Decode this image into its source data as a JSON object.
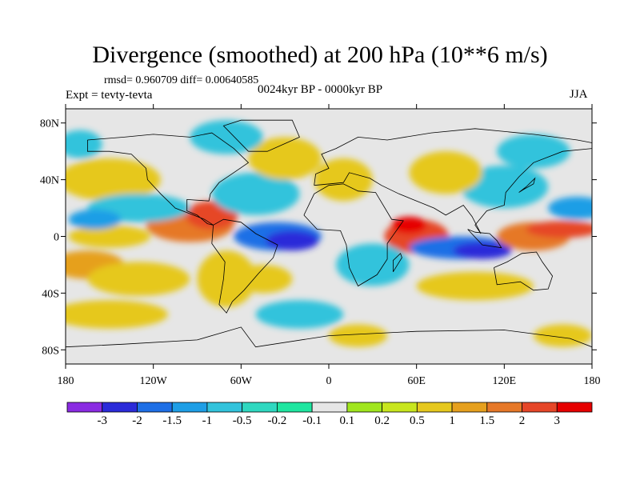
{
  "title": "Divergence (smoothed) at 200 hPa (10**6 m/s)",
  "stats": "rmsd= 0.960709 diff= 0.00640585",
  "experiment": "Expt = tevty-tevta",
  "subtitle": "0024kyr BP - 0000kyr BP",
  "season": "JJA",
  "map": {
    "projection": "cylindrical-equidistant",
    "lon_range": [
      -180,
      180
    ],
    "lat_range": [
      -90,
      90
    ],
    "x_ticks": [
      {
        "value": -180,
        "label": "180"
      },
      {
        "value": -120,
        "label": "120W"
      },
      {
        "value": -60,
        "label": "60W"
      },
      {
        "value": 0,
        "label": "0"
      },
      {
        "value": 60,
        "label": "60E"
      },
      {
        "value": 120,
        "label": "120E"
      },
      {
        "value": 180,
        "label": "180"
      }
    ],
    "y_ticks": [
      {
        "value": 80,
        "label": "80N"
      },
      {
        "value": 40,
        "label": "40N"
      },
      {
        "value": 0,
        "label": "0"
      },
      {
        "value": -40,
        "label": "40S"
      },
      {
        "value": -80,
        "label": "80S"
      }
    ],
    "background_color": "#e6e6e6",
    "coastline_color": "#000000"
  },
  "colorbar": {
    "colors": [
      "#8a2be2",
      "#2b2bd9",
      "#1e6fe6",
      "#1e9ee6",
      "#32c3dc",
      "#2fd8c0",
      "#1fe6a0",
      "#e6e6e6",
      "#a0e61e",
      "#c8e61e",
      "#e6c81e",
      "#e6a01e",
      "#e67828",
      "#e64628",
      "#e60000"
    ],
    "labels": [
      "-3",
      "-2",
      "-1.5",
      "-1",
      "-0.5",
      "-0.2",
      "-0.1",
      "0.1",
      "0.2",
      "0.5",
      "1",
      "1.5",
      "2",
      "3"
    ]
  },
  "regions": [
    {
      "lon": -150,
      "lat": 0,
      "rx": 28,
      "ry": 8,
      "level": 0.7
    },
    {
      "lon": -165,
      "lat": -20,
      "rx": 25,
      "ry": 10,
      "level": 1.2
    },
    {
      "lon": -130,
      "lat": -30,
      "rx": 35,
      "ry": 12,
      "level": 0.6
    },
    {
      "lon": -95,
      "lat": 8,
      "rx": 30,
      "ry": 12,
      "level": 1.8
    },
    {
      "lon": -80,
      "lat": 15,
      "rx": 18,
      "ry": 10,
      "level": 2.2
    },
    {
      "lon": -150,
      "lat": 40,
      "rx": 35,
      "ry": 15,
      "level": 0.8
    },
    {
      "lon": -130,
      "lat": 20,
      "rx": 35,
      "ry": 10,
      "level": -0.8
    },
    {
      "lon": -160,
      "lat": 12,
      "rx": 18,
      "ry": 7,
      "level": -1.5
    },
    {
      "lon": -35,
      "lat": 0,
      "rx": 30,
      "ry": 10,
      "level": -1.6
    },
    {
      "lon": -25,
      "lat": -3,
      "rx": 18,
      "ry": 7,
      "level": -2.4
    },
    {
      "lon": -50,
      "lat": 30,
      "rx": 30,
      "ry": 15,
      "level": -0.6
    },
    {
      "lon": -70,
      "lat": -30,
      "rx": 20,
      "ry": 20,
      "level": 0.9
    },
    {
      "lon": -45,
      "lat": -30,
      "rx": 20,
      "ry": 10,
      "level": 0.6
    },
    {
      "lon": -30,
      "lat": 55,
      "rx": 25,
      "ry": 15,
      "level": 0.6
    },
    {
      "lon": 10,
      "lat": 40,
      "rx": 20,
      "ry": 15,
      "level": 0.8
    },
    {
      "lon": 60,
      "lat": 0,
      "rx": 22,
      "ry": 12,
      "level": 2.5
    },
    {
      "lon": 55,
      "lat": 8,
      "rx": 12,
      "ry": 6,
      "level": 3.2
    },
    {
      "lon": 90,
      "lat": -8,
      "rx": 35,
      "ry": 8,
      "level": -1.7
    },
    {
      "lon": 105,
      "lat": -10,
      "rx": 20,
      "ry": 6,
      "level": -2.8
    },
    {
      "lon": 140,
      "lat": 0,
      "rx": 25,
      "ry": 10,
      "level": 1.8
    },
    {
      "lon": 160,
      "lat": 5,
      "rx": 25,
      "ry": 6,
      "level": 2.3
    },
    {
      "lon": 170,
      "lat": 20,
      "rx": 20,
      "ry": 8,
      "level": -1.3
    },
    {
      "lon": 120,
      "lat": 35,
      "rx": 30,
      "ry": 15,
      "level": -0.7
    },
    {
      "lon": 80,
      "lat": 45,
      "rx": 25,
      "ry": 15,
      "level": 0.5
    },
    {
      "lon": 100,
      "lat": -35,
      "rx": 40,
      "ry": 10,
      "level": 0.7
    },
    {
      "lon": 30,
      "lat": -20,
      "rx": 25,
      "ry": 15,
      "level": -0.6
    },
    {
      "lon": 140,
      "lat": 60,
      "rx": 25,
      "ry": 12,
      "level": -0.6
    },
    {
      "lon": -70,
      "lat": 70,
      "rx": 25,
      "ry": 12,
      "level": -0.6
    },
    {
      "lon": -170,
      "lat": 65,
      "rx": 15,
      "ry": 10,
      "level": -0.6
    },
    {
      "lon": -150,
      "lat": -55,
      "rx": 40,
      "ry": 10,
      "level": 0.6
    },
    {
      "lon": -20,
      "lat": -55,
      "rx": 30,
      "ry": 10,
      "level": -0.6
    },
    {
      "lon": 20,
      "lat": -70,
      "rx": 20,
      "ry": 8,
      "level": 0.6
    },
    {
      "lon": 160,
      "lat": -70,
      "rx": 20,
      "ry": 8,
      "level": 0.6
    }
  ]
}
